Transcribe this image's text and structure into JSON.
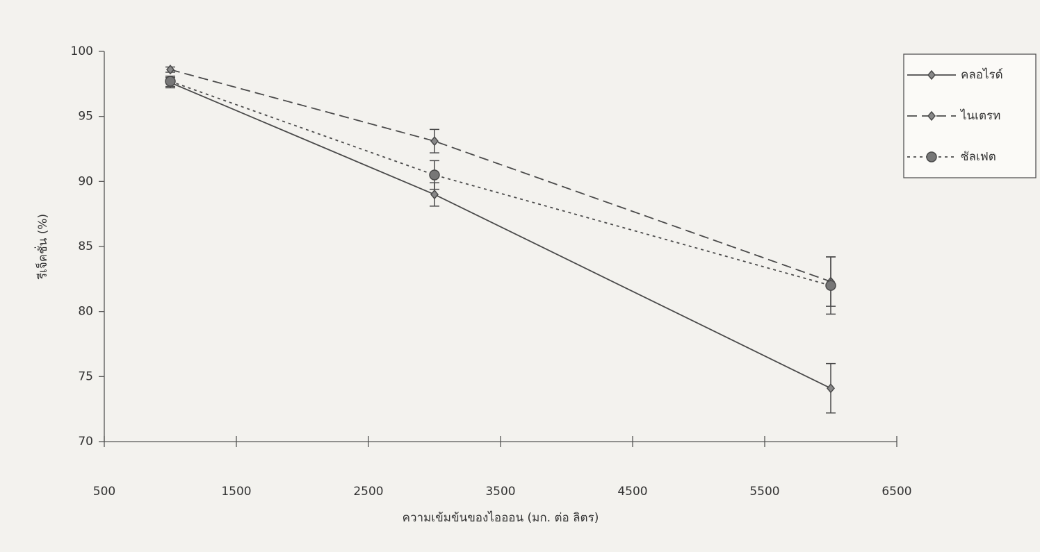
{
  "chart_data": {
    "type": "line",
    "x_label": "ความเข้มข้นของไอออน (มก. ต่อ ลิตร)",
    "y_label": "รีเจ็คชั่น (%)",
    "x": [
      1000,
      3000,
      6000
    ],
    "series": [
      {
        "name": "คลอไรด์",
        "color": "#4a4a4a",
        "line_style": "solid",
        "marker": "diamond",
        "values": [
          97.6,
          89.0,
          74.1
        ],
        "errors": [
          0.4,
          0.9,
          1.9
        ]
      },
      {
        "name": "ไนเตรท",
        "color": "#4a4a4a",
        "line_style": "dashed",
        "marker": "diamond",
        "values": [
          98.6,
          93.1,
          82.3
        ],
        "errors": [
          0.2,
          0.9,
          1.9
        ]
      },
      {
        "name": "ซัลเฟต",
        "color": "#4a4a4a",
        "line_style": "dotted",
        "marker": "circle",
        "values": [
          97.7,
          90.5,
          82.0
        ],
        "errors": [
          0.4,
          1.1,
          2.2
        ]
      }
    ],
    "xlim": [
      500,
      6500
    ],
    "xticks": [
      500,
      1500,
      2500,
      3500,
      4500,
      5500,
      6500
    ],
    "ylim": [
      70,
      100
    ],
    "yticks": [
      70,
      75,
      80,
      85,
      90,
      95,
      100
    ],
    "grid": false,
    "legend": "right"
  }
}
